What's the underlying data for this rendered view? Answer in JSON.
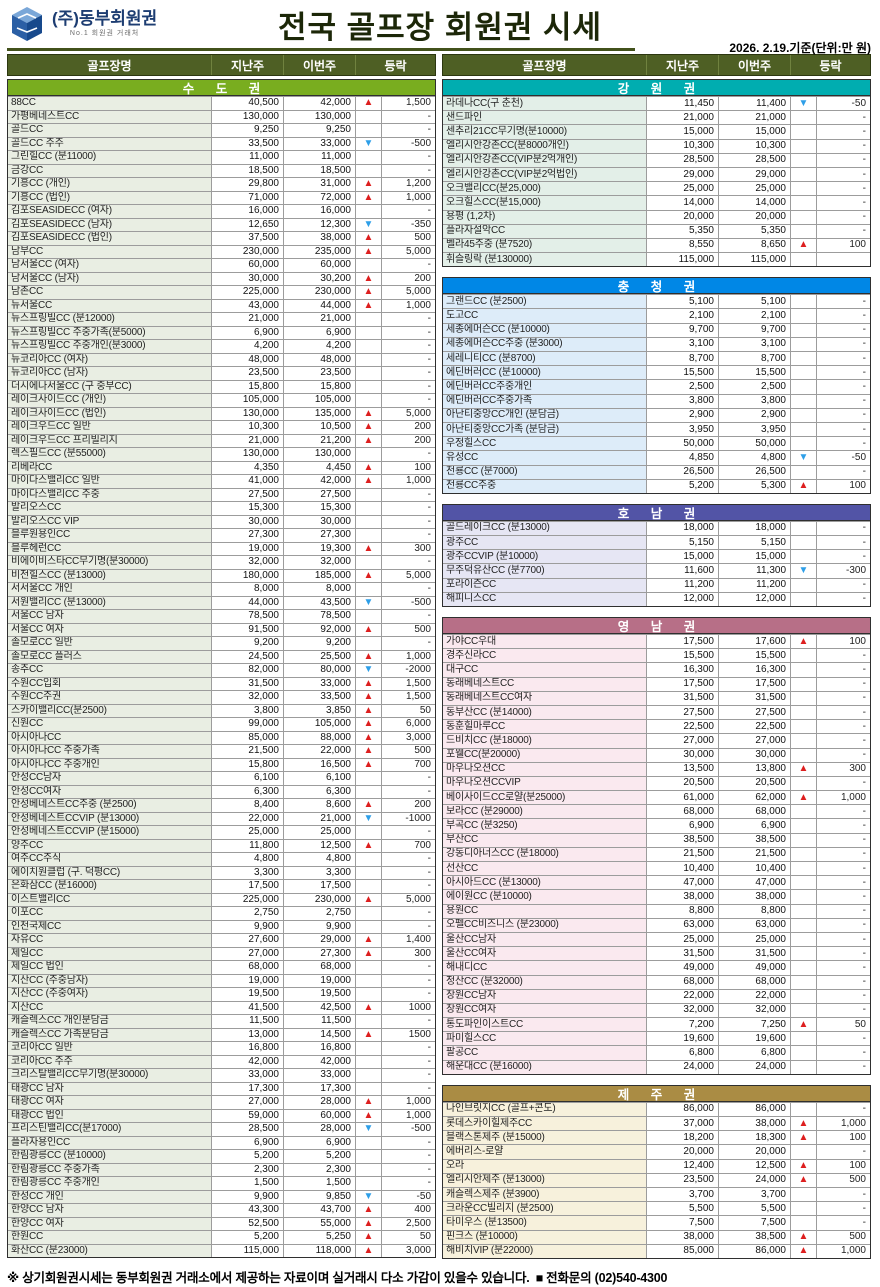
{
  "header": {
    "company": "(주)동부회원권",
    "tagline": "No.1 회원권 거래처",
    "title": "전국 골프장 회원권 시세",
    "date_note": "2026. 2.19.기준(단위:만 원)"
  },
  "columns": {
    "name": "골프장명",
    "last_week": "지난주",
    "this_week": "이번주",
    "change": "등락"
  },
  "colors": {
    "table_head_bg": "#4e5f24",
    "up_arrow": "#dd1f1f",
    "down_arrow": "#2e9fe8"
  },
  "regions": [
    {
      "title": "수 도 권",
      "column": "left",
      "bar_color": "#79ad1f",
      "name_bg": "#e9eee3",
      "rows": [
        [
          "88CC",
          "40,500",
          "42,000",
          "up",
          "1,500"
        ],
        [
          "가평베네스트CC",
          "130,000",
          "130,000",
          "",
          "-"
        ],
        [
          "골드CC",
          "9,250",
          "9,250",
          "",
          "-"
        ],
        [
          "골드CC 주주",
          "33,500",
          "33,000",
          "down",
          "-500"
        ],
        [
          "그린힐CC (분11000)",
          "11,000",
          "11,000",
          "",
          "-"
        ],
        [
          "금강CC",
          "18,500",
          "18,500",
          "",
          "-"
        ],
        [
          "기흥CC (개인)",
          "29,800",
          "31,000",
          "up",
          "1,200"
        ],
        [
          "기흥CC (법인)",
          "71,000",
          "72,000",
          "up",
          "1,000"
        ],
        [
          "김포SEASIDECC (여자)",
          "16,000",
          "16,000",
          "",
          "-"
        ],
        [
          "김포SEASIDECC (남자)",
          "12,650",
          "12,300",
          "down",
          "-350"
        ],
        [
          "김포SEASIDECC (법인)",
          "37,500",
          "38,000",
          "up",
          "500"
        ],
        [
          "남부CC",
          "230,000",
          "235,000",
          "up",
          "5,000"
        ],
        [
          "남서울CC (여자)",
          "60,000",
          "60,000",
          "",
          "-"
        ],
        [
          "남서울CC (남자)",
          "30,000",
          "30,200",
          "up",
          "200"
        ],
        [
          "남촌CC",
          "225,000",
          "230,000",
          "up",
          "5,000"
        ],
        [
          "뉴서울CC",
          "43,000",
          "44,000",
          "up",
          "1,000"
        ],
        [
          "뉴스프링빌CC (분12000)",
          "21,000",
          "21,000",
          "",
          "-"
        ],
        [
          "뉴스프링빌CC 주중가족(분5000)",
          "6,900",
          "6,900",
          "",
          "-"
        ],
        [
          "뉴스프링빌CC 주중개인(분3000)",
          "4,200",
          "4,200",
          "",
          "-"
        ],
        [
          "뉴코리아CC (여자)",
          "48,000",
          "48,000",
          "",
          "-"
        ],
        [
          "뉴코리아CC (남자)",
          "23,500",
          "23,500",
          "",
          "-"
        ],
        [
          "더시에나서울CC (구 중부CC)",
          "15,800",
          "15,800",
          "",
          "-"
        ],
        [
          "레이크사이드CC (개인)",
          "105,000",
          "105,000",
          "",
          "-"
        ],
        [
          "레이크사이드CC (법인)",
          "130,000",
          "135,000",
          "up",
          "5,000"
        ],
        [
          "레이크우드CC 일반",
          "10,300",
          "10,500",
          "up",
          "200"
        ],
        [
          "레이크우드CC 프리빌리지",
          "21,000",
          "21,200",
          "up",
          "200"
        ],
        [
          "렉스필드CC (분55000)",
          "130,000",
          "130,000",
          "",
          "-"
        ],
        [
          "리베라CC",
          "4,350",
          "4,450",
          "up",
          "100"
        ],
        [
          "마이다스밸리CC 일반",
          "41,000",
          "42,000",
          "up",
          "1,000"
        ],
        [
          "마이다스밸리CC 주중",
          "27,500",
          "27,500",
          "",
          "-"
        ],
        [
          "발리오스CC",
          "15,300",
          "15,300",
          "",
          "-"
        ],
        [
          "발리오스CC VIP",
          "30,000",
          "30,000",
          "",
          "-"
        ],
        [
          "블루원용인CC",
          "27,300",
          "27,300",
          "",
          "-"
        ],
        [
          "블루헤런CC",
          "19,000",
          "19,300",
          "up",
          "300"
        ],
        [
          "비에이비스타CC무기명(분30000)",
          "32,000",
          "32,000",
          "",
          "-"
        ],
        [
          "비전힐스CC (분13000)",
          "180,000",
          "185,000",
          "up",
          "5,000"
        ],
        [
          "서서울CC 개인",
          "8,000",
          "8,000",
          "",
          "-"
        ],
        [
          "서원밸리CC (분13000)",
          "44,000",
          "43,500",
          "down",
          "-500"
        ],
        [
          "서울CC 남자",
          "78,500",
          "78,500",
          "",
          "-"
        ],
        [
          "서울CC 여자",
          "91,500",
          "92,000",
          "up",
          "500"
        ],
        [
          "솔모로CC 일반",
          "9,200",
          "9,200",
          "",
          "-"
        ],
        [
          "솔모로CC 플러스",
          "24,500",
          "25,500",
          "up",
          "1,000"
        ],
        [
          "송추CC",
          "82,000",
          "80,000",
          "down",
          "-2000"
        ],
        [
          "수원CC입회",
          "31,500",
          "33,000",
          "up",
          "1,500"
        ],
        [
          "수원CC주권",
          "32,000",
          "33,500",
          "up",
          "1,500"
        ],
        [
          "스카이밸리CC(분2500)",
          "3,800",
          "3,850",
          "up",
          "50"
        ],
        [
          "신원CC",
          "99,000",
          "105,000",
          "up",
          "6,000"
        ],
        [
          "아시아나CC",
          "85,000",
          "88,000",
          "up",
          "3,000"
        ],
        [
          "아시아나CC 주중가족",
          "21,500",
          "22,000",
          "up",
          "500"
        ],
        [
          "아시아나CC 주중개인",
          "15,800",
          "16,500",
          "up",
          "700"
        ],
        [
          "안성CC남자",
          "6,100",
          "6,100",
          "",
          "-"
        ],
        [
          "안성CC여자",
          "6,300",
          "6,300",
          "",
          "-"
        ],
        [
          "안성베네스트CC주중 (분2500)",
          "8,400",
          "8,600",
          "up",
          "200"
        ],
        [
          "안성베네스트CCVIP (분13000)",
          "22,000",
          "21,000",
          "down",
          "-1000"
        ],
        [
          "안성베네스트CCVIP (분15000)",
          "25,000",
          "25,000",
          "",
          "-"
        ],
        [
          "양주CC",
          "11,800",
          "12,500",
          "up",
          "700"
        ],
        [
          "여주CC주식",
          "4,800",
          "4,800",
          "",
          "-"
        ],
        [
          "에이치원클럽 (구. 덕평CC)",
          "3,300",
          "3,300",
          "",
          "-"
        ],
        [
          "은화삼CC (분16000)",
          "17,500",
          "17,500",
          "",
          "-"
        ],
        [
          "이스트밸리CC",
          "225,000",
          "230,000",
          "up",
          "5,000"
        ],
        [
          "이포CC",
          "2,750",
          "2,750",
          "",
          "-"
        ],
        [
          "인천국제CC",
          "9,900",
          "9,900",
          "",
          "-"
        ],
        [
          "자유CC",
          "27,600",
          "29,000",
          "up",
          "1,400"
        ],
        [
          "제일CC",
          "27,000",
          "27,300",
          "up",
          "300"
        ],
        [
          "제일CC 법인",
          "68,000",
          "68,000",
          "",
          "-"
        ],
        [
          "지산CC (주중남자)",
          "19,000",
          "19,000",
          "",
          "-"
        ],
        [
          "지산CC (주중여자)",
          "19,500",
          "19,500",
          "",
          "-"
        ],
        [
          "지산CC",
          "41,500",
          "42,500",
          "up",
          "1000"
        ],
        [
          "캐슬렉스CC 개인분담금",
          "11,500",
          "11,500",
          "",
          "-"
        ],
        [
          "캐슬렉스CC 가족분담금",
          "13,000",
          "14,500",
          "up",
          "1500"
        ],
        [
          "코리아CC 일반",
          "16,800",
          "16,800",
          "",
          "-"
        ],
        [
          "코리아CC 주주",
          "42,000",
          "42,000",
          "",
          "-"
        ],
        [
          "크리스탈밸리CC무기명(분30000)",
          "33,000",
          "33,000",
          "",
          "-"
        ],
        [
          "태광CC 남자",
          "17,300",
          "17,300",
          "",
          "-"
        ],
        [
          "태광CC 여자",
          "27,000",
          "28,000",
          "up",
          "1,000"
        ],
        [
          "태광CC 법인",
          "59,000",
          "60,000",
          "up",
          "1,000"
        ],
        [
          "프리스틴밸리CC(분17000)",
          "28,500",
          "28,000",
          "down",
          "-500"
        ],
        [
          "플라자용인CC",
          "6,900",
          "6,900",
          "",
          "-"
        ],
        [
          "한림광릉CC (분10000)",
          "5,200",
          "5,200",
          "",
          "-"
        ],
        [
          "한림광릉CC 주중가족",
          "2,300",
          "2,300",
          "",
          "-"
        ],
        [
          "한림광릉CC 주중개인",
          "1,500",
          "1,500",
          "",
          "-"
        ],
        [
          "한성CC 개인",
          "9,900",
          "9,850",
          "down",
          "-50"
        ],
        [
          "한양CC 남자",
          "43,300",
          "43,700",
          "up",
          "400"
        ],
        [
          "한양CC 여자",
          "52,500",
          "55,000",
          "up",
          "2,500"
        ],
        [
          "한원CC",
          "5,200",
          "5,250",
          "up",
          "50"
        ],
        [
          "화산CC (분23000)",
          "115,000",
          "118,000",
          "up",
          "3,000"
        ]
      ]
    },
    {
      "title": "강 원 권",
      "column": "right",
      "bar_color": "#00adb0",
      "name_bg": "#e3efe8",
      "rows": [
        [
          "라데나CC(구 춘천)",
          "11,450",
          "11,400",
          "down",
          "-50"
        ],
        [
          "샌드파인",
          "21,000",
          "21,000",
          "",
          "-"
        ],
        [
          "센추리21CC무기명(분10000)",
          "15,000",
          "15,000",
          "",
          "-"
        ],
        [
          "엘리시안강촌CC(분8000개인)",
          "10,300",
          "10,300",
          "",
          "-"
        ],
        [
          "엘리시안강촌CC(VIP분2억개인)",
          "28,500",
          "28,500",
          "",
          "-"
        ],
        [
          "엘리시안강촌CC(VIP분2억법인)",
          "29,000",
          "29,000",
          "",
          "-"
        ],
        [
          "오크밸리CC(분25,000)",
          "25,000",
          "25,000",
          "",
          "-"
        ],
        [
          "오크힐스CC(분15,000)",
          "14,000",
          "14,000",
          "",
          "-"
        ],
        [
          "용평 (1,2차)",
          "20,000",
          "20,000",
          "",
          "-"
        ],
        [
          "플라자설악CC",
          "5,350",
          "5,350",
          "",
          "-"
        ],
        [
          "벨라45주중 (분7520)",
          "8,550",
          "8,650",
          "up",
          "100"
        ],
        [
          "휘슬링락 (분130000)",
          "115,000",
          "115,000",
          "",
          ""
        ]
      ]
    },
    {
      "title": "충 청 권",
      "column": "right",
      "bar_color": "#0087e6",
      "name_bg": "#ddecf9",
      "rows": [
        [
          "그랜드CC (분2500)",
          "5,100",
          "5,100",
          "",
          "-"
        ],
        [
          "도고CC",
          "2,100",
          "2,100",
          "",
          "-"
        ],
        [
          "세종에머슨CC (분10000)",
          "9,700",
          "9,700",
          "",
          "-"
        ],
        [
          "세종에머슨CC주중 (분3000)",
          "3,100",
          "3,100",
          "",
          "-"
        ],
        [
          "세레니티CC (분8700)",
          "8,700",
          "8,700",
          "",
          "-"
        ],
        [
          "에딘버러CC (분10000)",
          "15,500",
          "15,500",
          "",
          "-"
        ],
        [
          "에딘버러CC주중개인",
          "2,500",
          "2,500",
          "",
          "-"
        ],
        [
          "에딘버러CC주중가족",
          "3,800",
          "3,800",
          "",
          "-"
        ],
        [
          "아난티중앙CC개인 (분담금)",
          "2,900",
          "2,900",
          "",
          "-"
        ],
        [
          "아난티중앙CC가족 (분담금)",
          "3,950",
          "3,950",
          "",
          "-"
        ],
        [
          "우정힐스CC",
          "50,000",
          "50,000",
          "",
          "-"
        ],
        [
          "유성CC",
          "4,850",
          "4,800",
          "down",
          "-50"
        ],
        [
          "천룡CC (분7000)",
          "26,500",
          "26,500",
          "",
          "-"
        ],
        [
          "천룡CC주중",
          "5,200",
          "5,300",
          "up",
          "100"
        ]
      ]
    },
    {
      "title": "호 남 권",
      "column": "right",
      "bar_color": "#5254a6",
      "name_bg": "#e6e6f4",
      "rows": [
        [
          "골드레이크CC (분13000)",
          "18,000",
          "18,000",
          "",
          "-"
        ],
        [
          "광주CC",
          "5,150",
          "5,150",
          "",
          "-"
        ],
        [
          "광주CCVIP (분10000)",
          "15,000",
          "15,000",
          "",
          "-"
        ],
        [
          "무주덕유산CC (분7700)",
          "11,600",
          "11,300",
          "down",
          "-300"
        ],
        [
          "포라이즌CC",
          "11,200",
          "11,200",
          "",
          "-"
        ],
        [
          "해피니스CC",
          "12,000",
          "12,000",
          "",
          "-"
        ]
      ]
    },
    {
      "title": "영 남 권",
      "column": "right",
      "bar_color": "#b76f87",
      "name_bg": "#fae9ef",
      "rows": [
        [
          "가야CC우대",
          "17,500",
          "17,600",
          "up",
          "100"
        ],
        [
          "경주신라CC",
          "15,500",
          "15,500",
          "",
          "-"
        ],
        [
          "대구CC",
          "16,300",
          "16,300",
          "",
          "-"
        ],
        [
          "동래베네스트CC",
          "17,500",
          "17,500",
          "",
          "-"
        ],
        [
          "동래베네스트CC여자",
          "31,500",
          "31,500",
          "",
          "-"
        ],
        [
          "동부산CC (분14000)",
          "27,500",
          "27,500",
          "",
          "-"
        ],
        [
          "동훈힐마루CC",
          "22,500",
          "22,500",
          "",
          "-"
        ],
        [
          "드비치CC (분18000)",
          "27,000",
          "27,000",
          "",
          "-"
        ],
        [
          "포웰CC(분20000)",
          "30,000",
          "30,000",
          "",
          "-"
        ],
        [
          "마우나오션CC",
          "13,500",
          "13,800",
          "up",
          "300"
        ],
        [
          "마우나오션CCVIP",
          "20,500",
          "20,500",
          "",
          "-"
        ],
        [
          "베이사이드CC로얄(분25000)",
          "61,000",
          "62,000",
          "up",
          "1,000"
        ],
        [
          "보라CC (분29000)",
          "68,000",
          "68,000",
          "",
          "-"
        ],
        [
          "부곡CC (분3250)",
          "6,900",
          "6,900",
          "",
          "-"
        ],
        [
          "부산CC",
          "38,500",
          "38,500",
          "",
          "-"
        ],
        [
          "강동디아너스CC (분18000)",
          "21,500",
          "21,500",
          "",
          "-"
        ],
        [
          "선산CC",
          "10,400",
          "10,400",
          "",
          "-"
        ],
        [
          "아시아드CC (분13000)",
          "47,000",
          "47,000",
          "",
          "-"
        ],
        [
          "에이원CC (분10000)",
          "38,000",
          "38,000",
          "",
          "-"
        ],
        [
          "용원CC",
          "8,800",
          "8,800",
          "",
          "-"
        ],
        [
          "오펠CC비즈니스 (분23000)",
          "63,000",
          "63,000",
          "",
          "-"
        ],
        [
          "울산CC남자",
          "25,000",
          "25,000",
          "",
          "-"
        ],
        [
          "울산CC여자",
          "31,500",
          "31,500",
          "",
          "-"
        ],
        [
          "해내디CC",
          "49,000",
          "49,000",
          "",
          "-"
        ],
        [
          "정산CC (분32000)",
          "68,000",
          "68,000",
          "",
          "-"
        ],
        [
          "창원CC남자",
          "22,000",
          "22,000",
          "",
          "-"
        ],
        [
          "창원CC여자",
          "32,000",
          "32,000",
          "",
          "-"
        ],
        [
          "통도파인이스트CC",
          "7,200",
          "7,250",
          "up",
          "50"
        ],
        [
          "파미힐스CC",
          "19,600",
          "19,600",
          "",
          "-"
        ],
        [
          "팔공CC",
          "6,800",
          "6,800",
          "",
          "-"
        ],
        [
          "해운대CC (분16000)",
          "24,000",
          "24,000",
          "",
          "-"
        ]
      ]
    },
    {
      "title": "제 주 권",
      "column": "right",
      "bar_color": "#aa8c44",
      "name_bg": "#f7f1dc",
      "rows": [
        [
          "나인브릿지CC (골프+콘도)",
          "86,000",
          "86,000",
          "",
          "-"
        ],
        [
          "롯데스카이힐제주CC",
          "37,000",
          "38,000",
          "up",
          "1,000"
        ],
        [
          "블랙스톤제주 (분15000)",
          "18,200",
          "18,300",
          "up",
          "100"
        ],
        [
          "에버리스-로얄",
          "20,000",
          "20,000",
          "",
          "-"
        ],
        [
          "오라",
          "12,400",
          "12,500",
          "up",
          "100"
        ],
        [
          "엘리시안제주 (분13000)",
          "23,500",
          "24,000",
          "up",
          "500"
        ],
        [
          "캐슬렉스제주 (분3900)",
          "3,700",
          "3,700",
          "",
          "-"
        ],
        [
          "크라운CC빌리지 (분2500)",
          "5,500",
          "5,500",
          "",
          "-"
        ],
        [
          "타미우스 (분13500)",
          "7,500",
          "7,500",
          "",
          "-"
        ],
        [
          "핀크스 (분10000)",
          "38,000",
          "38,500",
          "up",
          "500"
        ],
        [
          "해비치VIP (분22000)",
          "85,000",
          "86,000",
          "up",
          "1,000"
        ]
      ]
    }
  ],
  "footer": {
    "notice": "※ 상기회원권시세는 동부회원권 거래소에서 제공하는 자료이며 실거래시 다소 가감이 있을수 있습니다.",
    "contact": "■ 전화문의 (02)540-4300"
  }
}
